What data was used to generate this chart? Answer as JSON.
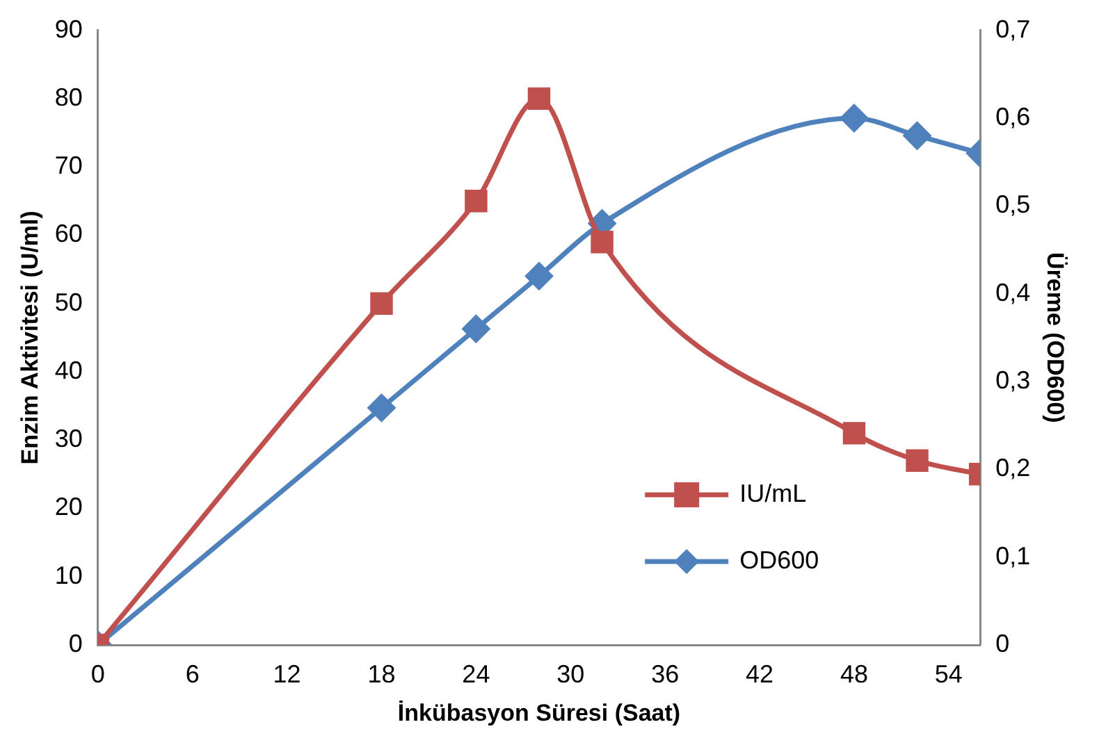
{
  "chart_data": {
    "type": "line",
    "xlabel": "İnkübasyon Süresi (Saat)",
    "ylabel": "Enzim Aktivitesi (U/ml)",
    "y2label": "Üreme (OD600)",
    "xlim": [
      0,
      56
    ],
    "xticks": [
      0,
      6,
      12,
      18,
      24,
      30,
      36,
      42,
      48,
      54
    ],
    "ylim": [
      0,
      90
    ],
    "yticks": [
      0,
      10,
      20,
      30,
      40,
      50,
      60,
      70,
      80,
      90
    ],
    "y2lim": [
      0,
      0.7
    ],
    "y2ticks": [
      {
        "value": 0,
        "label": "0"
      },
      {
        "value": 0.1,
        "label": "0,1"
      },
      {
        "value": 0.2,
        "label": "0,2"
      },
      {
        "value": 0.3,
        "label": "0,3"
      },
      {
        "value": 0.4,
        "label": "0,4"
      },
      {
        "value": 0.5,
        "label": "0,5"
      },
      {
        "value": 0.6,
        "label": "0,6"
      },
      {
        "value": 0.7,
        "label": "0,7"
      }
    ],
    "grid": false,
    "legend": "bottom right",
    "series": [
      {
        "name": "IU/mL",
        "color": "#c0504d",
        "marker": "square",
        "x": [
          0,
          18,
          24,
          28,
          32,
          48,
          52,
          56
        ],
        "values": [
          0,
          50,
          65,
          80,
          59,
          31,
          27,
          25
        ]
      },
      {
        "name": "OD600",
        "color": "#4f81bd",
        "marker": "diamond",
        "axis": "y2",
        "x": [
          0,
          18,
          24,
          28,
          32,
          48,
          52,
          56
        ],
        "values": [
          0,
          0.27,
          0.36,
          0.42,
          0.48,
          0.6,
          0.58,
          0.56
        ]
      }
    ]
  }
}
